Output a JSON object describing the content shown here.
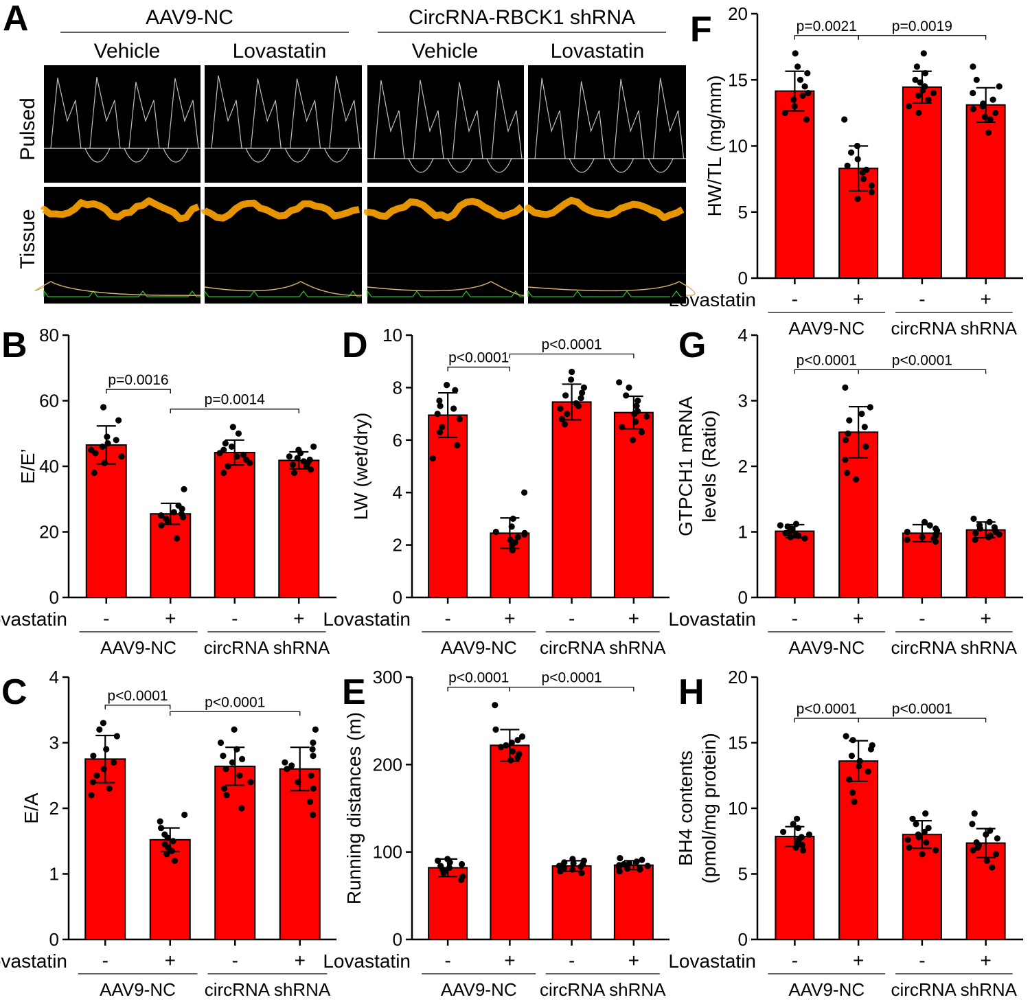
{
  "panel_a": {
    "letter": "A",
    "groups": [
      "AAV9-NC",
      "CircRNA-RBCK1 shRNA"
    ],
    "columns": [
      "Vehicle",
      "Lovastatin",
      "Vehicle",
      "Lovastatin"
    ],
    "rows": [
      "Pulsed",
      "Tissue"
    ],
    "colors": {
      "pulsed": "#ffffff",
      "tissue": "#ffa500",
      "ecg": "#22bb22",
      "resp": "#d9b26a"
    }
  },
  "chart_data": [
    {
      "id": "B",
      "letter": "B",
      "type": "bar",
      "ylabel": [
        "E/E’"
      ],
      "ylim": [
        0,
        80
      ],
      "yticks": [
        0,
        20,
        40,
        60,
        80
      ],
      "xlabel": "Lovastatin",
      "treatment": [
        "-",
        "+",
        "-",
        "+"
      ],
      "groups": [
        "AAV9-NC",
        "circRNA shRNA"
      ],
      "values": [
        46.5,
        25.5,
        44.2,
        41.8
      ],
      "errors": [
        5.8,
        3.2,
        3.8,
        2.6
      ],
      "points": [
        [
          58,
          54,
          49,
          48,
          47,
          46,
          45,
          44,
          43,
          41,
          38
        ],
        [
          33,
          28,
          27,
          26,
          25.5,
          25,
          24.5,
          24,
          23,
          22,
          18
        ],
        [
          52,
          50,
          47,
          46,
          45,
          44,
          43.5,
          43,
          42,
          41,
          40,
          38
        ],
        [
          46,
          45,
          44,
          43,
          42.5,
          42,
          41.5,
          41,
          40.5,
          40,
          39,
          38
        ]
      ],
      "comparisons": [
        {
          "from": 0,
          "to": 1,
          "label": "p=0.0016"
        },
        {
          "from": 1,
          "to": 3,
          "label": "p=0.0014"
        }
      ]
    },
    {
      "id": "C",
      "letter": "C",
      "type": "bar",
      "ylabel": [
        "E/A"
      ],
      "ylim": [
        0,
        4
      ],
      "yticks": [
        0,
        1,
        2,
        3,
        4
      ],
      "xlabel": "Lovastatin",
      "treatment": [
        "-",
        "+",
        "-",
        "+"
      ],
      "groups": [
        "AAV9-NC",
        "circRNA shRNA"
      ],
      "values": [
        2.75,
        1.52,
        2.64,
        2.6
      ],
      "errors": [
        0.36,
        0.18,
        0.29,
        0.33
      ],
      "points": [
        [
          3.3,
          3.2,
          3.1,
          2.9,
          2.8,
          2.7,
          2.6,
          2.5,
          2.4,
          2.3,
          2.2
        ],
        [
          1.9,
          1.8,
          1.7,
          1.6,
          1.55,
          1.5,
          1.45,
          1.4,
          1.35,
          1.3,
          1.2
        ],
        [
          3.2,
          3.0,
          2.9,
          2.8,
          2.75,
          2.7,
          2.6,
          2.5,
          2.4,
          2.3,
          2.2,
          2.0
        ],
        [
          3.2,
          3.0,
          2.9,
          2.8,
          2.7,
          2.65,
          2.6,
          2.5,
          2.4,
          2.3,
          2.1,
          1.9
        ]
      ],
      "comparisons": [
        {
          "from": 0,
          "to": 1,
          "label": "p<0.0001"
        },
        {
          "from": 1,
          "to": 3,
          "label": "p<0.0001"
        }
      ]
    },
    {
      "id": "D",
      "letter": "D",
      "type": "bar",
      "ylabel": [
        "LW (wet/dry)"
      ],
      "ylim": [
        0,
        10
      ],
      "yticks": [
        0,
        2,
        4,
        6,
        8,
        10
      ],
      "xlabel": "Lovastatin",
      "treatment": [
        "-",
        "+",
        "-",
        "+"
      ],
      "groups": [
        "AAV9-NC",
        "circRNA shRNA"
      ],
      "values": [
        6.95,
        2.45,
        7.45,
        7.05
      ],
      "errors": [
        0.85,
        0.58,
        0.68,
        0.62
      ],
      "points": [
        [
          8.1,
          7.9,
          7.5,
          7.3,
          7.2,
          7.0,
          6.8,
          6.5,
          6.3,
          5.8,
          5.3
        ],
        [
          4.0,
          3.0,
          2.7,
          2.5,
          2.45,
          2.4,
          2.3,
          2.2,
          2.1,
          2.0,
          1.8
        ],
        [
          8.6,
          8.3,
          8.0,
          7.8,
          7.7,
          7.6,
          7.4,
          7.3,
          7.2,
          7.0,
          6.8,
          6.6
        ],
        [
          8.2,
          8.0,
          7.7,
          7.5,
          7.3,
          7.1,
          7.0,
          6.9,
          6.7,
          6.5,
          6.3,
          6.0
        ]
      ],
      "comparisons": [
        {
          "from": 0,
          "to": 1,
          "label": "p<0.0001"
        },
        {
          "from": 1,
          "to": 3,
          "label": "p<0.0001"
        }
      ]
    },
    {
      "id": "E",
      "letter": "E",
      "type": "bar",
      "ylabel": [
        "Running distances (m)"
      ],
      "ylim": [
        0,
        300
      ],
      "yticks": [
        0,
        100,
        200,
        300
      ],
      "xlabel": "Lovastatin",
      "treatment": [
        "-",
        "+",
        "-",
        "+"
      ],
      "groups": [
        "AAV9-NC",
        "circRNA shRNA"
      ],
      "values": [
        82,
        222,
        84,
        85
      ],
      "errors": [
        10,
        18,
        6,
        5
      ],
      "points": [
        [
          92,
          90,
          88,
          86,
          84,
          82,
          80,
          78,
          76,
          72,
          68
        ],
        [
          268,
          240,
          232,
          228,
          225,
          222,
          220,
          215,
          212,
          208,
          205
        ],
        [
          92,
          90,
          88,
          87,
          86,
          85,
          84,
          83,
          82,
          80,
          78,
          76
        ],
        [
          93,
          91,
          89,
          87,
          86,
          85,
          84,
          83,
          82,
          81,
          80,
          78
        ]
      ],
      "comparisons": [
        {
          "from": 0,
          "to": 1,
          "label": "p<0.0001"
        },
        {
          "from": 1,
          "to": 3,
          "label": "p<0.0001"
        }
      ]
    },
    {
      "id": "F",
      "letter": "F",
      "type": "bar",
      "ylabel": [
        "HW/TL (mg/mm)"
      ],
      "ylim": [
        0,
        20
      ],
      "yticks": [
        0,
        5,
        10,
        15,
        20
      ],
      "xlabel": "Lovastatin",
      "treatment": [
        "-",
        "+",
        "-",
        "+"
      ],
      "groups": [
        "AAV9-NC",
        "circRNA shRNA"
      ],
      "values": [
        14.15,
        8.3,
        14.45,
        13.1
      ],
      "errors": [
        1.5,
        1.7,
        1.2,
        1.3
      ],
      "points": [
        [
          17,
          16,
          15.5,
          15,
          14.5,
          14,
          13.8,
          13.5,
          13,
          12.5,
          12
        ],
        [
          12,
          10,
          9.5,
          9,
          8.5,
          8.2,
          8,
          7.5,
          7,
          6.5,
          6
        ],
        [
          17,
          16,
          15.5,
          15,
          14.8,
          14.5,
          14.2,
          14,
          13.8,
          13.5,
          13,
          12.5
        ],
        [
          16,
          15,
          14.5,
          14,
          13.5,
          13.2,
          13,
          12.8,
          12.5,
          12.2,
          12,
          11
        ]
      ],
      "comparisons": [
        {
          "from": 0,
          "to": 1,
          "label": "p=0.0021"
        },
        {
          "from": 1,
          "to": 3,
          "label": "p=0.0019"
        }
      ]
    },
    {
      "id": "G",
      "letter": "G",
      "type": "bar",
      "ylabel": [
        "GTPCH1 mRNA",
        "levels (Ratio)"
      ],
      "ylim": [
        0,
        4
      ],
      "yticks": [
        0,
        1,
        2,
        3,
        4
      ],
      "xlabel": "Lovastatin",
      "treatment": [
        "-",
        "+",
        "-",
        "+"
      ],
      "groups": [
        "AAV9-NC",
        "circRNA shRNA"
      ],
      "values": [
        1.01,
        2.52,
        0.98,
        1.03
      ],
      "errors": [
        0.1,
        0.39,
        0.13,
        0.12
      ],
      "points": [
        [
          1.12,
          1.1,
          1.08,
          1.05,
          1.03,
          1.0,
          0.98,
          0.96,
          0.94,
          0.92,
          0.9
        ],
        [
          3.2,
          2.9,
          2.8,
          2.7,
          2.6,
          2.5,
          2.4,
          2.3,
          2.1,
          1.9,
          1.8
        ],
        [
          1.15,
          1.1,
          1.05,
          1.02,
          1.0,
          0.98,
          0.96,
          0.94,
          0.92,
          0.9,
          0.88,
          0.85
        ],
        [
          1.2,
          1.15,
          1.1,
          1.07,
          1.05,
          1.03,
          1.0,
          0.98,
          0.96,
          0.94,
          0.92,
          0.88
        ]
      ],
      "comparisons": [
        {
          "from": 0,
          "to": 1,
          "label": "p<0.0001"
        },
        {
          "from": 1,
          "to": 3,
          "label": "p<0.0001"
        }
      ]
    },
    {
      "id": "H",
      "letter": "H",
      "type": "bar",
      "ylabel": [
        "BH4 contents",
        "(pmol/mg protein)"
      ],
      "ylim": [
        0,
        20
      ],
      "yticks": [
        0,
        5,
        10,
        15,
        20
      ],
      "xlabel": "Lovastatin",
      "treatment": [
        "-",
        "+",
        "-",
        "+"
      ],
      "groups": [
        "AAV9-NC",
        "circRNA shRNA"
      ],
      "values": [
        7.85,
        13.6,
        8.0,
        7.35
      ],
      "errors": [
        0.75,
        1.55,
        1.05,
        1.1
      ],
      "points": [
        [
          9.2,
          8.8,
          8.5,
          8.2,
          8.0,
          7.8,
          7.6,
          7.4,
          7.2,
          7.0,
          6.8
        ],
        [
          15.5,
          15.2,
          14.8,
          14.5,
          14.0,
          13.6,
          13.2,
          12.8,
          12.2,
          11.2,
          10.5
        ],
        [
          9.6,
          9.2,
          8.8,
          8.5,
          8.2,
          8.0,
          7.8,
          7.6,
          7.4,
          7.0,
          6.8,
          6.5
        ],
        [
          9.6,
          8.8,
          8.3,
          8.0,
          7.7,
          7.4,
          7.2,
          7.0,
          6.8,
          6.5,
          6.0,
          5.5
        ]
      ],
      "comparisons": [
        {
          "from": 0,
          "to": 1,
          "label": "p<0.0001"
        },
        {
          "from": 1,
          "to": 3,
          "label": "p<0.0001"
        }
      ]
    }
  ]
}
